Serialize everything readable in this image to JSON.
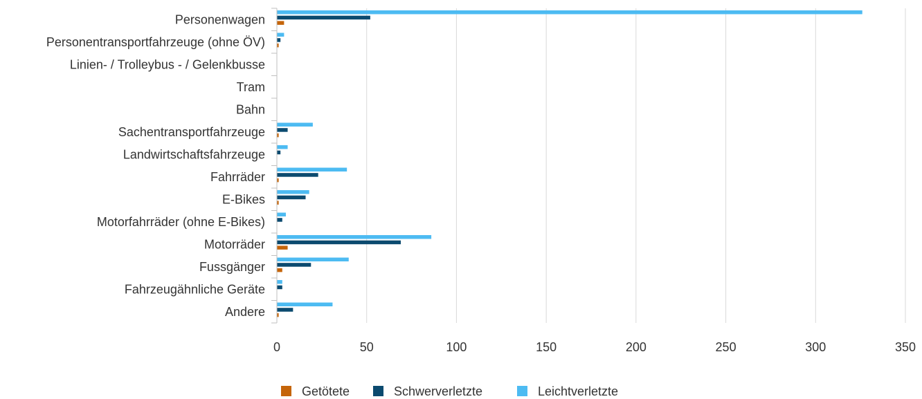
{
  "chart_data": {
    "type": "bar",
    "orientation": "horizontal",
    "categories": [
      "Personenwagen",
      "Personentransportfahrzeuge (ohne ÖV)",
      "Linien- / Trolleybus - / Gelenkbusse",
      "Tram",
      "Bahn",
      "Sachentransportfahrzeuge",
      "Landwirtschaftsfahrzeuge",
      "Fahrräder",
      "E-Bikes",
      "Motorfahrräder (ohne E-Bikes)",
      "Motorräder",
      "Fussgänger",
      "Fahrzeugähnliche Geräte",
      "Andere"
    ],
    "series": [
      {
        "name": "Getötete",
        "color": "#C5650A",
        "values": [
          4,
          1,
          0,
          0,
          0,
          1,
          0,
          1,
          1,
          0,
          6,
          3,
          0,
          1
        ]
      },
      {
        "name": "Schwerverletzte",
        "color": "#0B4A6F",
        "values": [
          52,
          2,
          0,
          0,
          0,
          6,
          2,
          23,
          16,
          3,
          69,
          19,
          3,
          9
        ]
      },
      {
        "name": "Leichtverletzte",
        "color": "#4DBBF2",
        "values": [
          326,
          4,
          0,
          0,
          0,
          20,
          6,
          39,
          18,
          5,
          86,
          40,
          3,
          31
        ]
      }
    ],
    "xlim": [
      0,
      350
    ],
    "xticks": [
      "0",
      "50",
      "100",
      "150",
      "200",
      "250",
      "300",
      "350"
    ],
    "grid": true,
    "legend_position": "bottom",
    "title": "",
    "xlabel": "",
    "ylabel": ""
  }
}
